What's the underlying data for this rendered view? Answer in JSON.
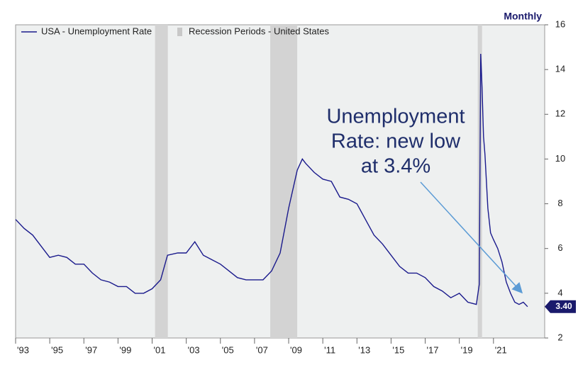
{
  "chart_data": {
    "type": "line",
    "frequency_label": "Monthly",
    "annotation": [
      "Unemployment",
      "Rate: new low",
      "at 3.4%"
    ],
    "end_label": {
      "value": 3.4,
      "label": "3.40"
    },
    "x": [
      1993.0,
      1993.5,
      1994.0,
      1994.5,
      1995.0,
      1995.5,
      1996.0,
      1996.5,
      1997.0,
      1997.5,
      1998.0,
      1998.5,
      1999.0,
      1999.5,
      2000.0,
      2000.5,
      2001.0,
      2001.5,
      2001.9,
      2002.5,
      2003.0,
      2003.5,
      2004.0,
      2004.5,
      2005.0,
      2005.5,
      2006.0,
      2006.5,
      2007.0,
      2007.5,
      2008.0,
      2008.5,
      2009.0,
      2009.5,
      2009.8,
      2010.0,
      2010.5,
      2011.0,
      2011.5,
      2012.0,
      2012.5,
      2013.0,
      2013.5,
      2014.0,
      2014.5,
      2015.0,
      2015.5,
      2016.0,
      2016.5,
      2017.0,
      2017.5,
      2018.0,
      2018.5,
      2019.0,
      2019.5,
      2020.0,
      2020.17,
      2020.25,
      2020.33,
      2020.42,
      2020.5,
      2020.67,
      2020.83,
      2021.0,
      2021.25,
      2021.5,
      2021.75,
      2022.0,
      2022.25,
      2022.5,
      2022.75,
      2023.0
    ],
    "series": [
      {
        "name": "USA - Unemployment Rate",
        "color": "#1a1a8c",
        "values": [
          7.3,
          6.9,
          6.6,
          6.1,
          5.6,
          5.7,
          5.6,
          5.3,
          5.3,
          4.9,
          4.6,
          4.5,
          4.3,
          4.3,
          4.0,
          4.0,
          4.2,
          4.6,
          5.7,
          5.8,
          5.8,
          6.3,
          5.7,
          5.5,
          5.3,
          5.0,
          4.7,
          4.6,
          4.6,
          4.6,
          5.0,
          5.8,
          7.8,
          9.5,
          10.0,
          9.8,
          9.4,
          9.1,
          9.0,
          8.3,
          8.2,
          8.0,
          7.3,
          6.6,
          6.2,
          5.7,
          5.2,
          4.9,
          4.9,
          4.7,
          4.3,
          4.1,
          3.8,
          4.0,
          3.6,
          3.5,
          4.4,
          14.7,
          13.2,
          11.0,
          10.2,
          7.8,
          6.7,
          6.4,
          6.0,
          5.4,
          4.5,
          4.0,
          3.6,
          3.5,
          3.6,
          3.4
        ]
      }
    ],
    "recessions": {
      "name": "Recession Periods - United States",
      "color": "#d3d3d3",
      "periods": [
        [
          2001.17,
          2001.92
        ],
        [
          2007.92,
          2009.5
        ],
        [
          2020.08,
          2020.33
        ]
      ]
    },
    "xlim": [
      1993,
      2024
    ],
    "xticks": [
      {
        "value": 1993,
        "label": "'93"
      },
      {
        "value": 1995,
        "label": "'95"
      },
      {
        "value": 1997,
        "label": "'97"
      },
      {
        "value": 1999,
        "label": "'99"
      },
      {
        "value": 2001,
        "label": "'01"
      },
      {
        "value": 2003,
        "label": "'03"
      },
      {
        "value": 2005,
        "label": "'05"
      },
      {
        "value": 2007,
        "label": "'07"
      },
      {
        "value": 2009,
        "label": "'09"
      },
      {
        "value": 2011,
        "label": "'11"
      },
      {
        "value": 2013,
        "label": "'13"
      },
      {
        "value": 2015,
        "label": "'15"
      },
      {
        "value": 2017,
        "label": "'17"
      },
      {
        "value": 2019,
        "label": "'19"
      },
      {
        "value": 2021,
        "label": "'21"
      }
    ],
    "ylim": [
      2,
      16
    ],
    "yticks": [
      2,
      4,
      6,
      8,
      10,
      12,
      14,
      16
    ]
  }
}
